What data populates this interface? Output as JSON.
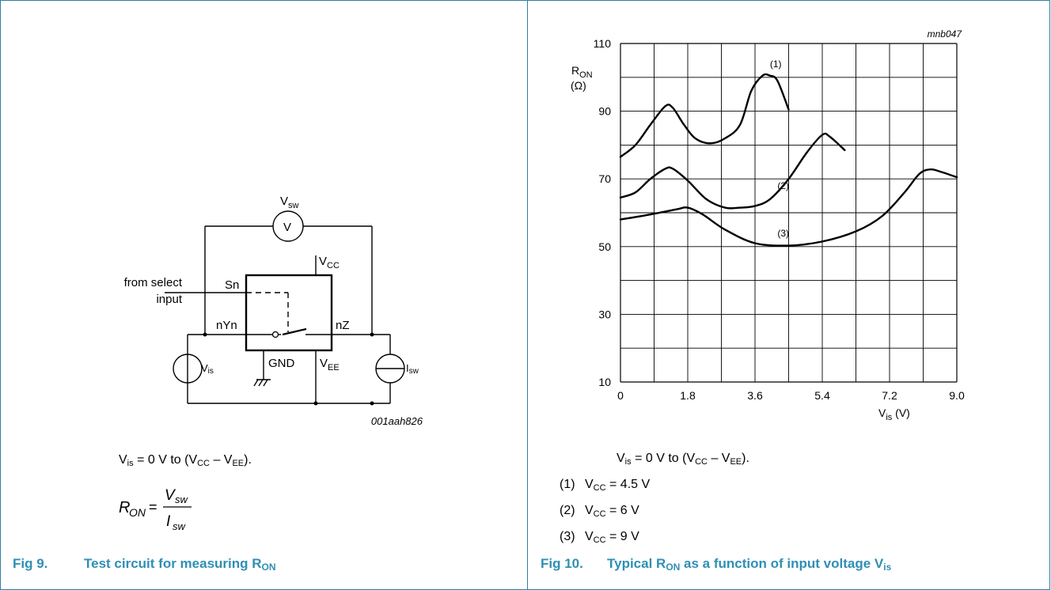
{
  "fig9": {
    "caption_num": "Fig 9.",
    "caption_text": "Test circuit for measuring R",
    "caption_sub": "ON",
    "diagram_id": "001aah826",
    "labels": {
      "vsw_v": "V",
      "vsw_sub": "sw",
      "meter": "V",
      "vcc_v": "V",
      "vcc_sub": "CC",
      "vee_v": "V",
      "vee_sub": "EE",
      "from_select_1": "from select",
      "from_select_2": "input",
      "sn": "Sn",
      "nyn": "nYn",
      "nz": "nZ",
      "gnd": "GND",
      "vis_v": "V",
      "vis_sub": "is",
      "isw_v": "I",
      "isw_sub": "sw"
    },
    "note": {
      "v": "V",
      "is": "is",
      "mid": " = 0 V to (V",
      "cc": "CC",
      "minus": " – V",
      "ee": "EE",
      "end": ")."
    },
    "formula": {
      "r": "R",
      "on": "ON",
      "eq": "=",
      "v": "V",
      "vsub": "sw",
      "i": "I",
      "isub": "sw"
    }
  },
  "fig10": {
    "caption_num": "Fig 10.",
    "caption_text": "Typical R",
    "caption_sub": "ON",
    "caption_rest": " as a function of input voltage V",
    "caption_sub2": "is",
    "note": {
      "v": "V",
      "is": "is",
      "mid": " = 0 V to (V",
      "cc": "CC",
      "minus": " – V",
      "ee": "EE",
      "end": ")."
    },
    "legend": [
      {
        "num": "(1)",
        "v": "V",
        "sub": "CC",
        "rest": " = 4.5 V"
      },
      {
        "num": "(2)",
        "v": "V",
        "sub": "CC",
        "rest": " = 6 V"
      },
      {
        "num": "(3)",
        "v": "V",
        "sub": "CC",
        "rest": " = 9 V"
      }
    ]
  },
  "chart_data": {
    "type": "line",
    "id_label": "mnb047",
    "ylabel_main": "R",
    "ylabel_sub": "ON",
    "ylabel_unit": "(Ω)",
    "xlabel_main": "V",
    "xlabel_sub": "is",
    "xlabel_unit": " (V)",
    "xlim": [
      0,
      9.0
    ],
    "ylim": [
      10,
      110
    ],
    "x_ticks": [
      "0",
      "1.8",
      "3.6",
      "5.4",
      "7.2",
      "9.0"
    ],
    "y_ticks": [
      "10",
      "30",
      "50",
      "70",
      "90",
      "110"
    ],
    "grid": true,
    "series": [
      {
        "name": "(1)",
        "points": [
          [
            0,
            76.5
          ],
          [
            0.4,
            80
          ],
          [
            0.8,
            86
          ],
          [
            1.2,
            91.5
          ],
          [
            1.4,
            91
          ],
          [
            1.7,
            86
          ],
          [
            2.0,
            82
          ],
          [
            2.4,
            80.5
          ],
          [
            2.8,
            82
          ],
          [
            3.2,
            86
          ],
          [
            3.5,
            96
          ],
          [
            3.8,
            100.5
          ],
          [
            4.0,
            100.5
          ],
          [
            4.2,
            99
          ],
          [
            4.5,
            90.5
          ]
        ]
      },
      {
        "name": "(2)",
        "points": [
          [
            0,
            64.5
          ],
          [
            0.4,
            66
          ],
          [
            0.8,
            70
          ],
          [
            1.2,
            73
          ],
          [
            1.4,
            73
          ],
          [
            1.8,
            69.5
          ],
          [
            2.3,
            64
          ],
          [
            2.8,
            61.5
          ],
          [
            3.2,
            61.5
          ],
          [
            3.6,
            62
          ],
          [
            4.0,
            64
          ],
          [
            4.5,
            70
          ],
          [
            5.0,
            78
          ],
          [
            5.4,
            83
          ],
          [
            5.6,
            82.5
          ],
          [
            6.0,
            78.5
          ]
        ]
      },
      {
        "name": "(3)",
        "points": [
          [
            0,
            58
          ],
          [
            0.8,
            59.5
          ],
          [
            1.5,
            61
          ],
          [
            1.8,
            61.5
          ],
          [
            2.2,
            59.5
          ],
          [
            2.8,
            55
          ],
          [
            3.6,
            51
          ],
          [
            4.5,
            50.3
          ],
          [
            5.4,
            51.5
          ],
          [
            6.3,
            54.5
          ],
          [
            7.0,
            59
          ],
          [
            7.6,
            66
          ],
          [
            8.0,
            71.5
          ],
          [
            8.3,
            72.8
          ],
          [
            8.6,
            72
          ],
          [
            9.0,
            70.5
          ]
        ]
      }
    ],
    "series_labels": [
      {
        "text": "(1)",
        "x": 4.0,
        "y": 103
      },
      {
        "text": "(2)",
        "x": 4.2,
        "y": 67
      },
      {
        "text": "(3)",
        "x": 4.2,
        "y": 53
      }
    ]
  }
}
